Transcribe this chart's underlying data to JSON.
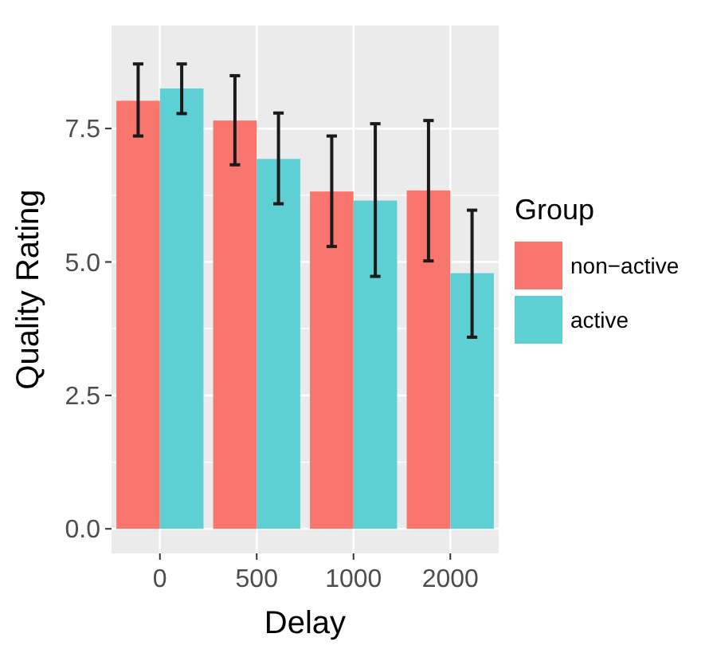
{
  "chart_data": {
    "type": "bar",
    "xlabel": "Delay",
    "ylabel": "Quality Rating",
    "legend_title": "Group",
    "categories": [
      "0",
      "500",
      "1000",
      "2000"
    ],
    "series": [
      {
        "name": "non−active",
        "color": "#f8766d",
        "values": [
          8.02,
          7.65,
          6.32,
          6.34
        ],
        "errors": [
          [
            7.36,
            8.71
          ],
          [
            6.82,
            8.49
          ],
          [
            5.29,
            7.36
          ],
          [
            5.02,
            7.65
          ]
        ]
      },
      {
        "name": "active",
        "color": "#5ecfd2",
        "values": [
          8.25,
          6.93,
          6.15,
          4.79
        ],
        "errors": [
          [
            7.78,
            8.71
          ],
          [
            6.09,
            7.79
          ],
          [
            4.73,
            7.59
          ],
          [
            3.59,
            5.97
          ]
        ]
      }
    ],
    "ylim": [
      -0.46,
      9.43
    ],
    "yticks": [
      {
        "value": 0,
        "label": "0.0"
      },
      2.5,
      {
        "value": 5,
        "label": "5.0"
      },
      7.5
    ],
    "grid": true,
    "legend": "right"
  }
}
